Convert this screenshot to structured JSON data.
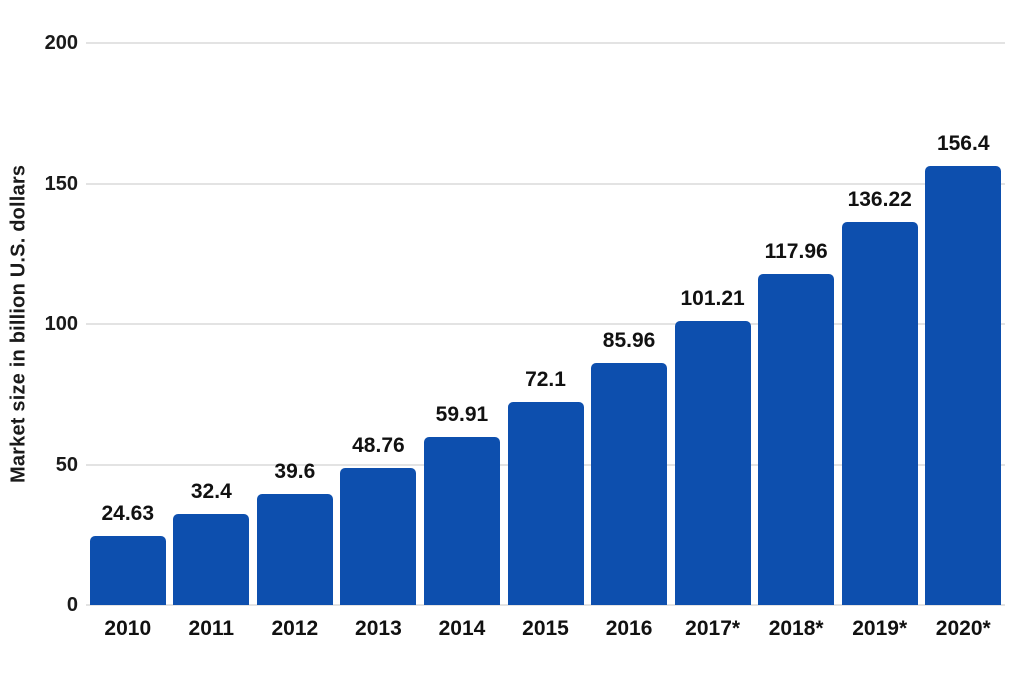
{
  "chart_data": {
    "type": "bar",
    "title": "",
    "categories": [
      "2010",
      "2011",
      "2012",
      "2013",
      "2014",
      "2015",
      "2016",
      "2017*",
      "2018*",
      "2019*",
      "2020*"
    ],
    "values": [
      24.63,
      32.4,
      39.6,
      48.76,
      59.91,
      72.1,
      85.96,
      101.21,
      117.96,
      136.22,
      156.4
    ],
    "value_labels": [
      "24.63",
      "32.4",
      "39.6",
      "48.76",
      "59.91",
      "72.1",
      "85.96",
      "101.21",
      "117.96",
      "136.22",
      "156.4"
    ],
    "xlabel": "",
    "ylabel": "Market size in billion U.S. dollars",
    "ytick_labels": [
      "0",
      "50",
      "100",
      "150",
      "200"
    ],
    "ytick_values": [
      0,
      50,
      100,
      150,
      200
    ],
    "ylim": [
      0,
      200
    ],
    "grid": "horizontal-only",
    "legend": "none",
    "colors": {
      "bar": "#0d4fae",
      "text": "#1a1a1a",
      "value_label_text": "#111111",
      "gridline": "#e3e3e3",
      "background": "#ffffff"
    }
  }
}
